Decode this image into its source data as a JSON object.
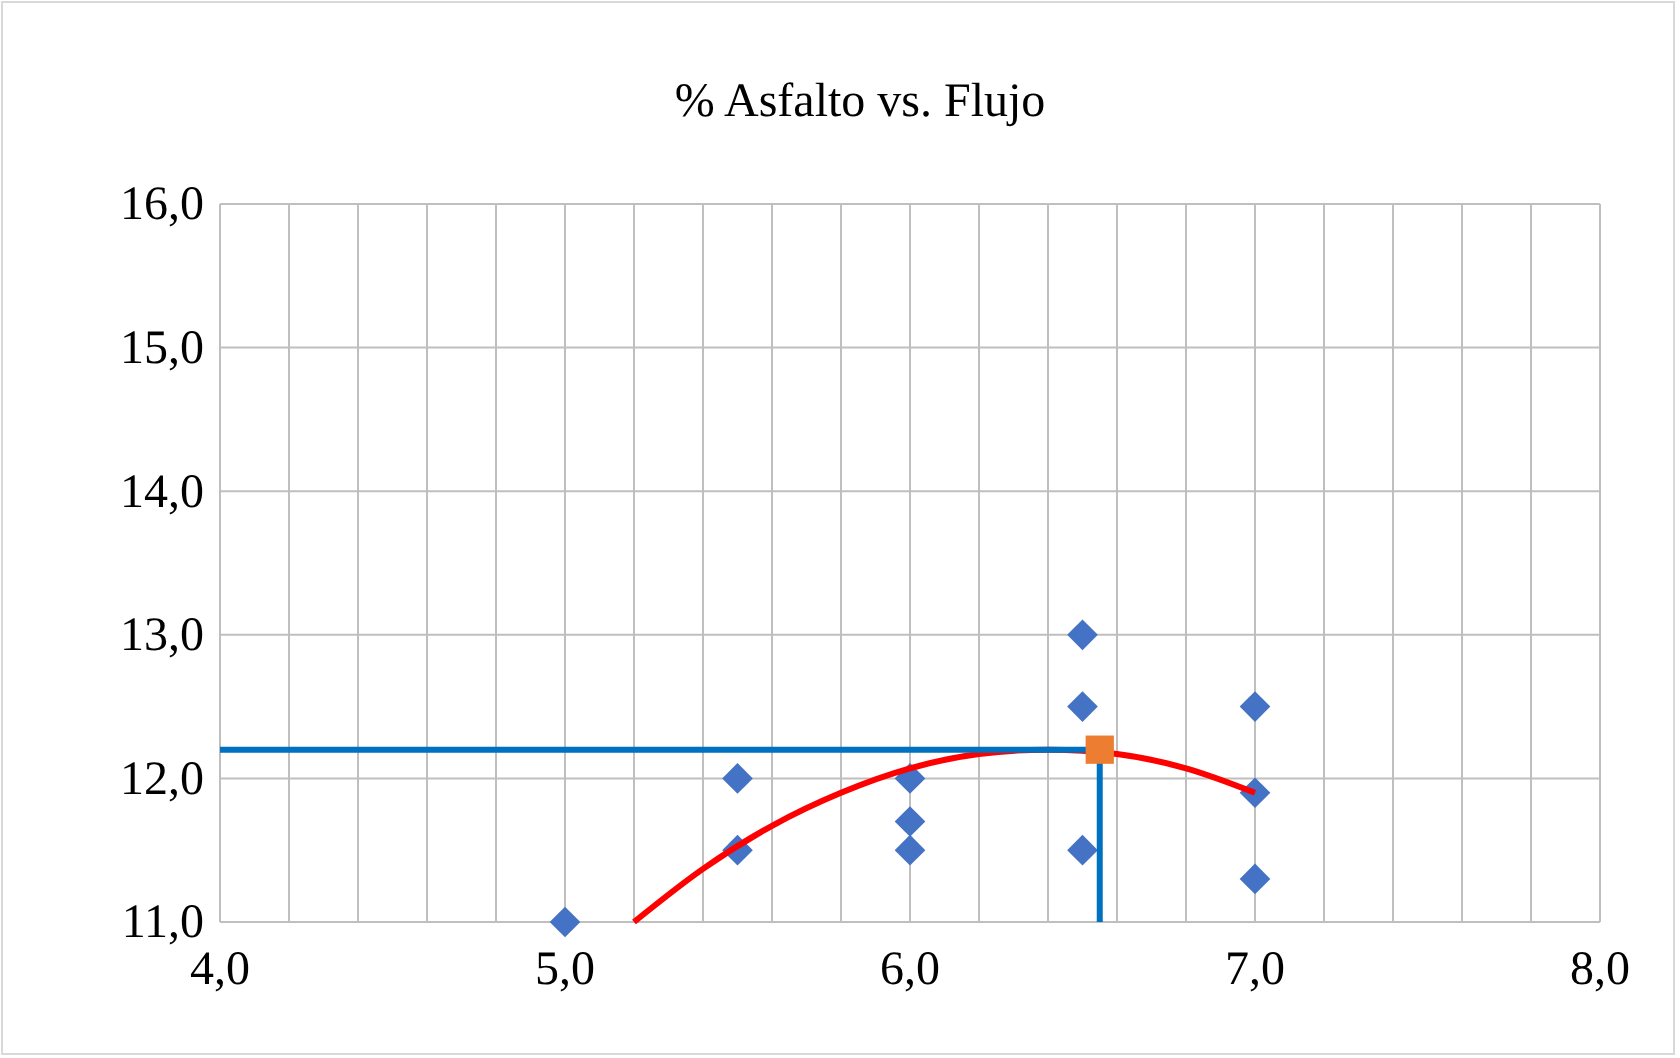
{
  "chart_data": {
    "type": "scatter",
    "title": "% Asfalto vs. Flujo",
    "xlim": [
      4,
      8
    ],
    "xticks": [
      {
        "value": 4,
        "label": "4,0"
      },
      {
        "value": 4.2,
        "label": null
      },
      {
        "value": 4.4,
        "label": null
      },
      {
        "value": 4.6,
        "label": null
      },
      {
        "value": 4.8,
        "label": null
      },
      {
        "value": 5,
        "label": "5,0"
      },
      {
        "value": 5.2,
        "label": null
      },
      {
        "value": 5.4,
        "label": null
      },
      {
        "value": 5.6,
        "label": null
      },
      {
        "value": 5.8,
        "label": null
      },
      {
        "value": 6,
        "label": "6,0"
      },
      {
        "value": 6.2,
        "label": null
      },
      {
        "value": 6.4,
        "label": null
      },
      {
        "value": 6.6,
        "label": null
      },
      {
        "value": 6.8,
        "label": null
      },
      {
        "value": 7,
        "label": "7,0"
      },
      {
        "value": 7.2,
        "label": null
      },
      {
        "value": 7.4,
        "label": null
      },
      {
        "value": 7.6,
        "label": null
      },
      {
        "value": 7.8,
        "label": null
      },
      {
        "value": 8,
        "label": "8,0"
      }
    ],
    "ylim": [
      11,
      16
    ],
    "yticks": [
      {
        "value": 11,
        "label": "11,0"
      },
      {
        "value": 12,
        "label": "12,0"
      },
      {
        "value": 13,
        "label": "13,0"
      },
      {
        "value": 14,
        "label": "14,0"
      },
      {
        "value": 15,
        "label": "15,0"
      },
      {
        "value": 16,
        "label": "16,0"
      }
    ],
    "grid": true,
    "series": [
      {
        "marker": "diamond",
        "color": "#4472c4",
        "x": [
          5,
          5.5,
          5.5,
          6,
          6,
          6,
          6.5,
          6.5,
          6.5,
          7,
          7,
          7
        ],
        "values": [
          11,
          12,
          11.5,
          12,
          11.7,
          11.5,
          13,
          12.5,
          11.5,
          12.5,
          11.9,
          11.3
        ]
      },
      {
        "type": "line",
        "marker": "none",
        "color": "#ff0000",
        "x": [
          5.2,
          5.4,
          5.6,
          5.8,
          6,
          6.2,
          6.4,
          6.6,
          6.8,
          7
        ],
        "values": [
          11,
          11.37,
          11.67,
          11.9,
          12.07,
          12.17,
          12.2,
          12.17,
          12.07,
          11.9
        ]
      },
      {
        "type": "line",
        "marker": "none",
        "color": "#0070c0",
        "x": [
          4,
          6.55,
          6.55
        ],
        "values": [
          12.2,
          12.2,
          11
        ]
      },
      {
        "marker": "square",
        "color": "#ed7d31",
        "x": [
          6.55
        ],
        "values": [
          12.2
        ]
      }
    ]
  }
}
